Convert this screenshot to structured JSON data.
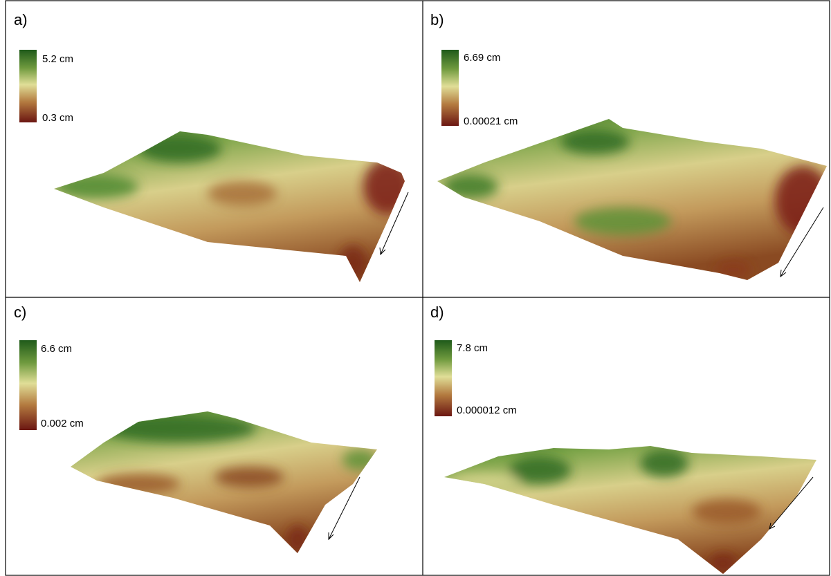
{
  "panels": [
    {
      "label": "a)",
      "legend_max": "5.2 cm",
      "legend_min": "0.3 cm"
    },
    {
      "label": "b)",
      "legend_max": "6.69 cm",
      "legend_min": "0.00021 cm"
    },
    {
      "label": "c)",
      "legend_max": "6.6 cm",
      "legend_min": "0.002 cm"
    },
    {
      "label": "d)",
      "legend_max": "7.8 cm",
      "legend_min": "0.000012 cm"
    }
  ]
}
